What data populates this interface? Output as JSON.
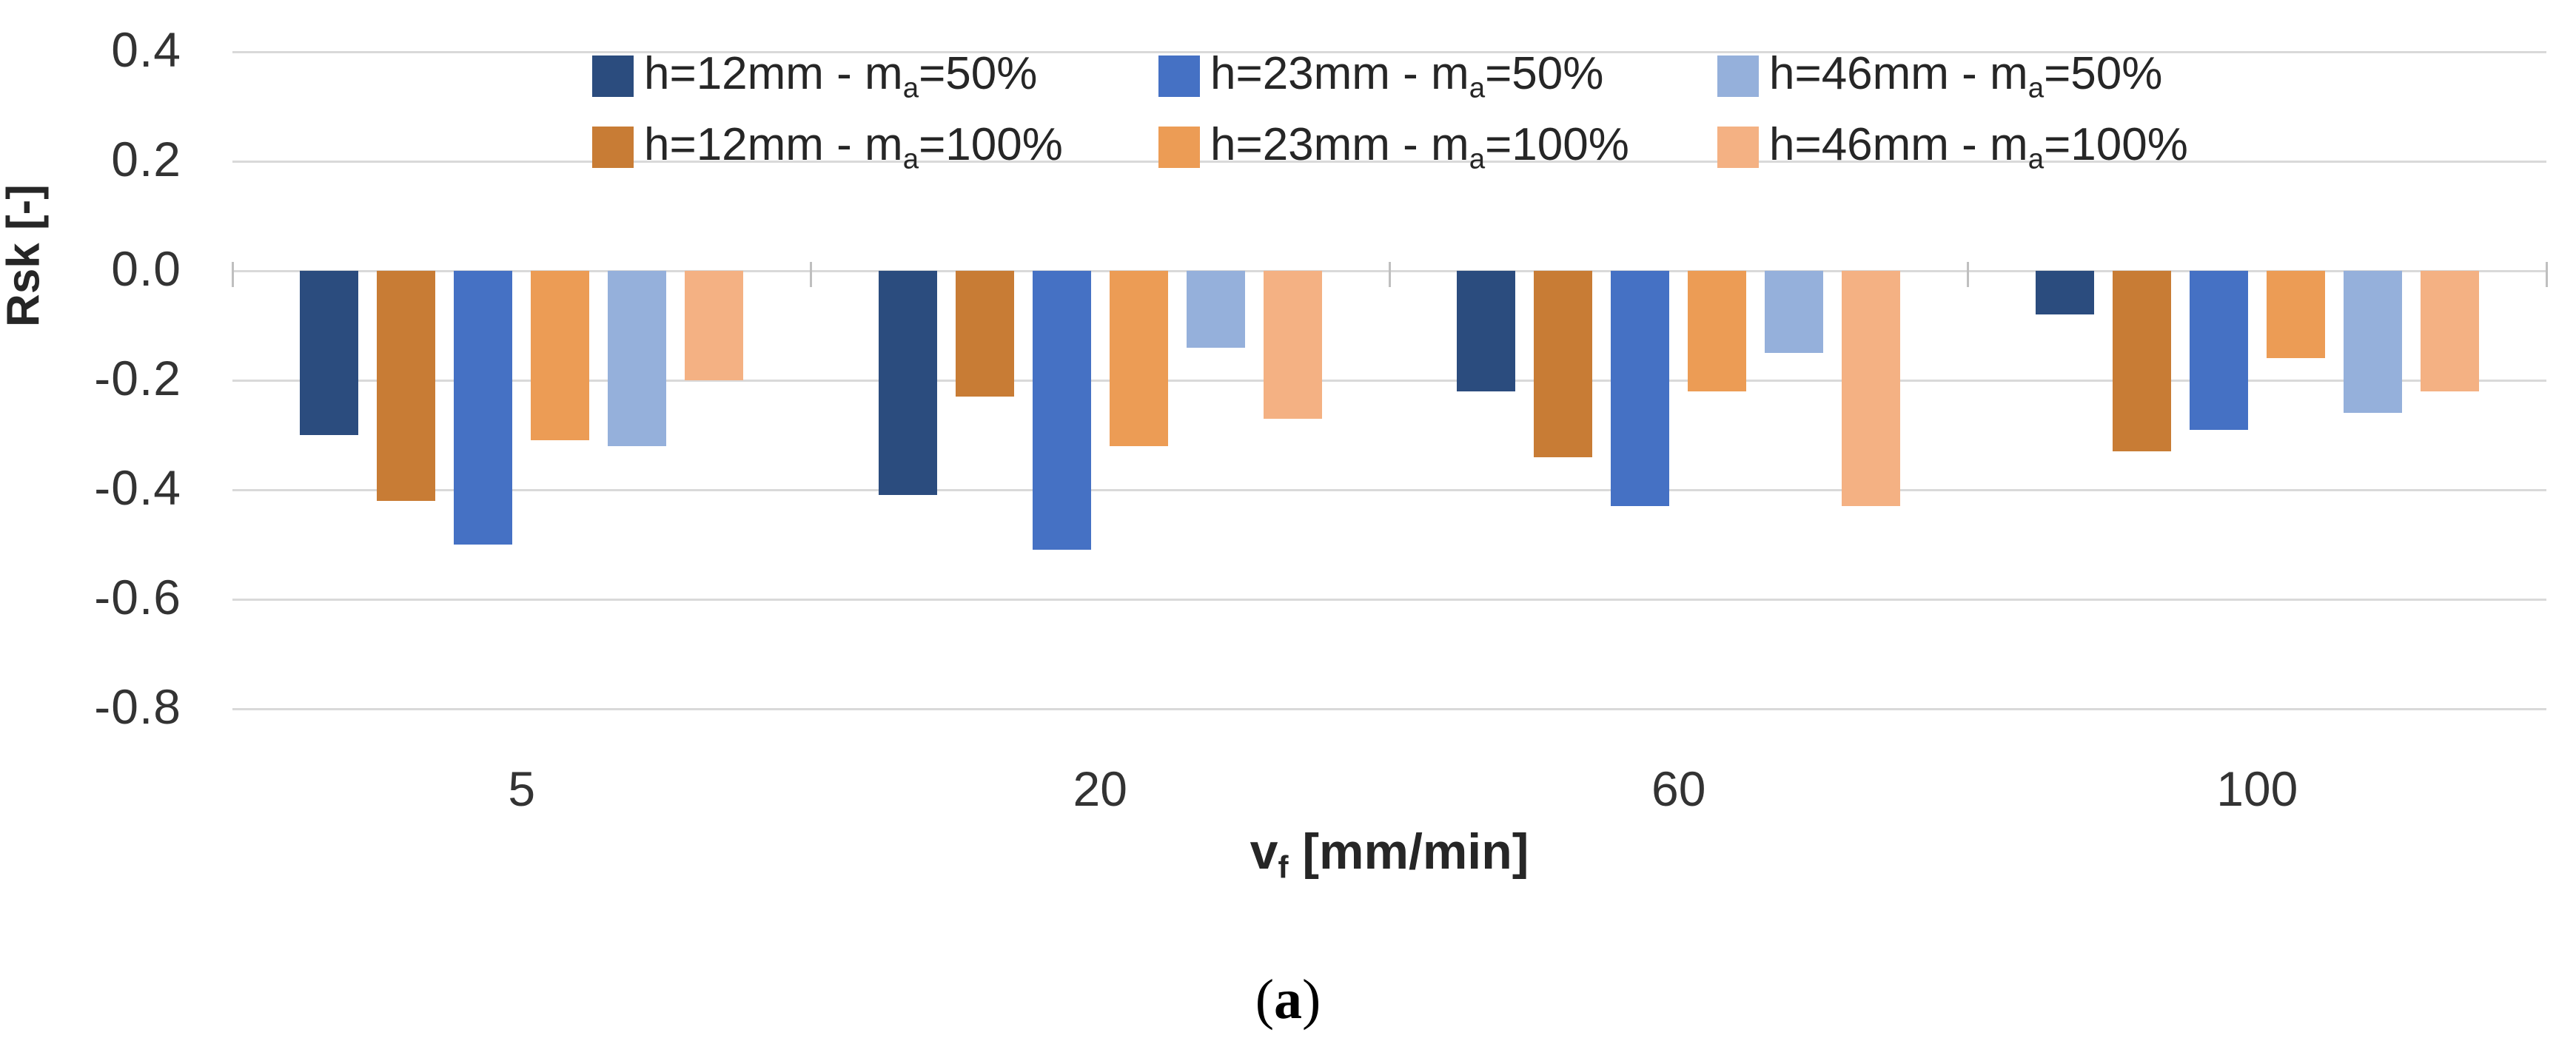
{
  "figure": {
    "caption": {
      "pre": "(",
      "letter": "a",
      "post": ")"
    }
  },
  "chart_data": {
    "type": "bar",
    "title": "",
    "ylabel": "Rsk [-]",
    "xlabel": {
      "pre": "v",
      "sub": "f",
      "post": " [mm/min]"
    },
    "categories": [
      "5",
      "20",
      "60",
      "100"
    ],
    "yticks": [
      "0.4",
      "0.2",
      "0.0",
      "-0.2",
      "-0.4",
      "-0.6",
      "-0.8"
    ],
    "ylim": [
      -0.8,
      0.4
    ],
    "grid": true,
    "legend_position": "top",
    "legend_rows": [
      [
        0,
        1,
        2
      ],
      [
        3,
        4,
        5
      ]
    ],
    "plot_order": [
      0,
      3,
      1,
      4,
      2,
      5
    ],
    "series": [
      {
        "label": {
          "pre": "h=12mm - m",
          "sub": "a",
          "post": "=50%"
        },
        "color": "#2B4C7E",
        "values": [
          -0.3,
          -0.41,
          -0.22,
          -0.08
        ]
      },
      {
        "label": {
          "pre": "h=23mm - m",
          "sub": "a",
          "post": "=50%"
        },
        "color": "#4571C4",
        "values": [
          -0.5,
          -0.51,
          -0.43,
          -0.29
        ]
      },
      {
        "label": {
          "pre": "h=46mm - m",
          "sub": "a",
          "post": "=50%"
        },
        "color": "#95B0DB",
        "values": [
          -0.32,
          -0.14,
          -0.15,
          -0.26
        ]
      },
      {
        "label": {
          "pre": "h=12mm - m",
          "sub": "a",
          "post": "=100%"
        },
        "color": "#C87C35",
        "values": [
          -0.42,
          -0.23,
          -0.34,
          -0.33
        ]
      },
      {
        "label": {
          "pre": "h=23mm - m",
          "sub": "a",
          "post": "=100%"
        },
        "color": "#EC9C55",
        "values": [
          -0.31,
          -0.32,
          -0.22,
          -0.16
        ]
      },
      {
        "label": {
          "pre": "h=46mm - m",
          "sub": "a",
          "post": "=100%"
        },
        "color": "#F4B183",
        "values": [
          -0.2,
          -0.27,
          -0.43,
          -0.22
        ]
      }
    ],
    "colors": {
      "gridline": "#D9D9D9",
      "axis_tick": "#BFBFBF",
      "text": "#333333"
    }
  }
}
